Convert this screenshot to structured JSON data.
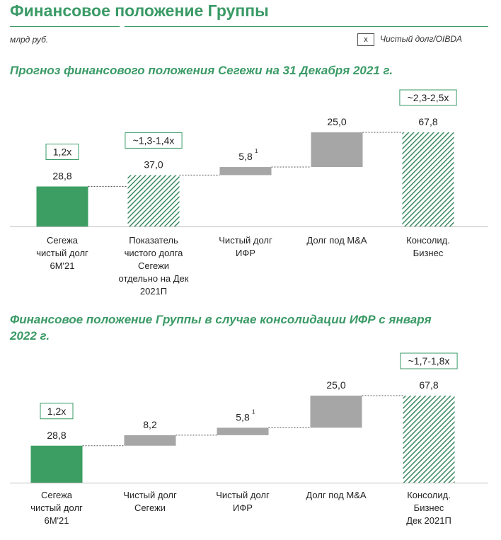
{
  "header": {
    "title": "Финансовое положение Группы",
    "unit": "млрд руб.",
    "legend_symbol": "x",
    "legend_label": "Чистый долг/OIBDA"
  },
  "colors": {
    "accent": "#3a9a66",
    "bar_green": "#3d9e63",
    "bar_grey": "#a6a6a6",
    "hatch_stroke": "#3a8a60"
  },
  "chart_data": [
    {
      "type": "bar",
      "subtype": "waterfall",
      "title": "Прогноз финансового положения Сегежи на 31 Декабря 2021 г.",
      "categories": [
        [
          "Сегежа",
          "чистый долг",
          "6M'21"
        ],
        [
          "Показатель",
          "чистого долга",
          "Сегежи",
          "отдельно на Дек",
          "2021П"
        ],
        [
          "Чистый долг",
          "ИФР"
        ],
        [
          "Долг под M&A"
        ],
        [
          "Консолид.",
          "Бизнес"
        ]
      ],
      "values": [
        28.8,
        37.0,
        5.8,
        25.0,
        67.8
      ],
      "value_labels": [
        "28,8",
        "37,0",
        "5,8",
        "25,0",
        "67,8"
      ],
      "bar_kinds": [
        "total",
        "total-hatched",
        "increment",
        "increment",
        "total-hatched"
      ],
      "footnote_marks": [
        "",
        "",
        "1",
        "",
        ""
      ],
      "multiples": [
        "1,2x",
        "~1,3-1,4x",
        "",
        "",
        "~2,3-2,5x"
      ],
      "ylim": [
        0,
        67.8
      ]
    },
    {
      "type": "bar",
      "subtype": "waterfall",
      "title": "Финансовое положение Группы в случае консолидации ИФР с января 2022 г.",
      "categories": [
        [
          "Сегежа",
          "чистый долг",
          "6M'21"
        ],
        [
          "Чистый долг",
          "Сегежи"
        ],
        [
          "Чистый долг",
          "ИФР"
        ],
        [
          "Долг под M&A"
        ],
        [
          "Консолид.",
          "Бизнес",
          "Дек 2021П"
        ]
      ],
      "values": [
        28.8,
        8.2,
        5.8,
        25.0,
        67.8
      ],
      "value_labels": [
        "28,8",
        "8,2",
        "5,8",
        "25,0",
        "67,8"
      ],
      "bar_kinds": [
        "total",
        "increment",
        "increment",
        "increment",
        "total-hatched"
      ],
      "footnote_marks": [
        "",
        "",
        "1",
        "",
        ""
      ],
      "multiples": [
        "1,2x",
        "",
        "",
        "",
        "~1,7-1,8x"
      ],
      "ylim": [
        0,
        67.8
      ]
    }
  ]
}
